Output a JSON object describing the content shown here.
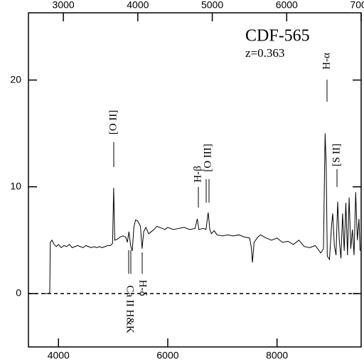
{
  "chart_data": {
    "type": "line",
    "title": "CDF-565",
    "subtitle": "z=0.363",
    "annotations": [
      "[O II]",
      "H-β",
      "[O III]",
      "H-α",
      "[S II]",
      "Ca II H&K",
      "H-δ"
    ],
    "x": [
      3690,
      3820,
      3840,
      3850,
      3880,
      3920,
      3960,
      4000,
      4050,
      4100,
      4150,
      4200,
      4250,
      4300,
      4350,
      4400,
      4450,
      4500,
      4550,
      4600,
      4650,
      4700,
      4750,
      4800,
      4850,
      4900,
      4950,
      4990,
      5010,
      5030,
      5080,
      5130,
      5180,
      5230,
      5260,
      5290,
      5320,
      5350,
      5380,
      5410,
      5450,
      5500,
      5530,
      5560,
      5600,
      5650,
      5700,
      5750,
      5800,
      5850,
      5900,
      5950,
      6000,
      6100,
      6200,
      6300,
      6400,
      6500,
      6540,
      6570,
      6650,
      6700,
      6740,
      6770,
      6800,
      6850,
      6900,
      7000,
      7100,
      7200,
      7300,
      7400,
      7500,
      7530,
      7550,
      7580,
      7650,
      7700,
      7800,
      7900,
      8000,
      8100,
      8200,
      8300,
      8400,
      8500,
      8600,
      8700,
      8800,
      8850,
      8880,
      8900,
      8920,
      8960,
      9000,
      9020,
      9050,
      9080,
      9110,
      9140,
      9170,
      9200,
      9230,
      9260,
      9290,
      9320,
      9350,
      9380,
      9410,
      9440,
      9470,
      9500,
      9520
    ],
    "values": [
      0.0,
      0.0,
      0.1,
      4.8,
      5.0,
      4.6,
      4.4,
      4.6,
      4.3,
      4.5,
      4.4,
      4.6,
      4.3,
      4.4,
      4.5,
      4.4,
      4.3,
      4.5,
      4.4,
      4.3,
      4.4,
      4.3,
      4.4,
      4.3,
      4.4,
      4.5,
      4.5,
      4.7,
      9.9,
      5.0,
      5.1,
      5.3,
      5.4,
      5.3,
      4.8,
      5.8,
      4.5,
      4.0,
      6.2,
      6.9,
      6.8,
      6.3,
      4.2,
      5.8,
      6.2,
      5.6,
      5.8,
      6.0,
      6.3,
      6.2,
      6.1,
      6.0,
      6.2,
      6.0,
      6.1,
      6.2,
      6.0,
      6.1,
      7.0,
      6.0,
      6.1,
      6.0,
      7.6,
      6.0,
      5.6,
      5.9,
      5.5,
      5.4,
      5.5,
      5.4,
      5.5,
      5.3,
      5.2,
      4.3,
      2.9,
      4.8,
      5.3,
      5.5,
      5.2,
      5.0,
      5.2,
      4.8,
      4.9,
      4.6,
      5.0,
      4.4,
      4.3,
      4.5,
      3.8,
      4.2,
      15.0,
      12.0,
      3.5,
      3.2,
      6.5,
      7.5,
      4.5,
      3.6,
      8.6,
      5.0,
      3.3,
      7.5,
      4.0,
      8.5,
      3.6,
      9.0,
      4.2,
      6.0,
      3.6,
      9.5,
      5.0,
      7.0,
      4.0
    ],
    "color": "#000000",
    "xlim": [
      3450,
      9540
    ],
    "xticks": [
      4000,
      6000,
      8000
    ],
    "x2lim": [
      2531,
      7000
    ],
    "x2ticks": [
      3000,
      4000,
      5000,
      6000,
      7000
    ],
    "ylim": [
      -5,
      26.3
    ],
    "yticks": [
      0,
      10,
      20
    ],
    "reference_line": 0
  }
}
